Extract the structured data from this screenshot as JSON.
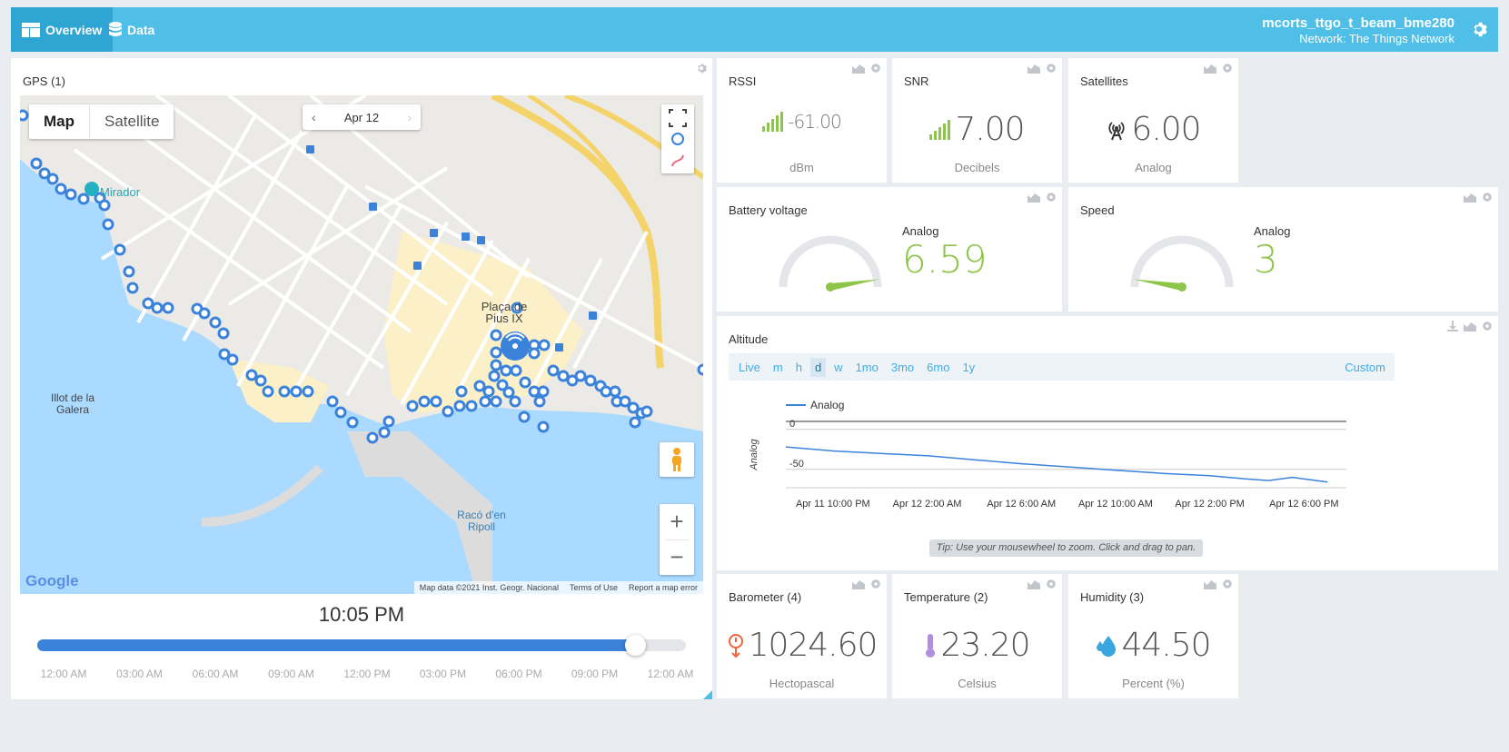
{
  "topbar": {
    "tabs": [
      {
        "label": "Overview",
        "icon": "overview-icon",
        "active": true
      },
      {
        "label": "Data",
        "icon": "database-icon",
        "active": false
      }
    ],
    "device_name": "mcorts_ttgo_t_beam_bme280",
    "network": "Network: The Things Network"
  },
  "gps": {
    "title": "GPS (1)",
    "map_types": [
      "Map",
      "Satellite"
    ],
    "date": "Apr 12",
    "prev": "‹",
    "next": "›",
    "zoom_in": "+",
    "zoom_out": "−",
    "google": "Google",
    "attribution": [
      "Map data ©2021 Inst. Geogr. Nacional",
      "Terms of Use",
      "Report a map error"
    ],
    "places": [
      "Mirador",
      "Plaça de Pius IX",
      "Illot de la Galera",
      "Racó d'en Ripoll"
    ],
    "time": "10:05 PM",
    "progress": 0.922,
    "ticks": [
      "12:00 AM",
      "03:00 AM",
      "06:00 AM",
      "09:00 AM",
      "12:00 PM",
      "03:00 PM",
      "06:00 PM",
      "09:00 PM",
      "12:00 AM"
    ]
  },
  "rssi": {
    "title": "RSSI",
    "value": "-61.00",
    "unit": "dBm"
  },
  "snr": {
    "title": "SNR",
    "value": "7.00",
    "unit": "Decibels"
  },
  "satellites": {
    "title": "Satellites",
    "value": "6.00",
    "unit": "Analog"
  },
  "battery": {
    "title": "Battery voltage",
    "label": "Analog",
    "value": "6.59",
    "gauge_fraction": 0.95
  },
  "speed": {
    "title": "Speed",
    "label": "Analog",
    "value": "3",
    "gauge_fraction": 0.05
  },
  "altitude": {
    "title": "Altitude",
    "ranges": [
      "Live",
      "m",
      "h",
      "d",
      "w",
      "1mo",
      "3mo",
      "6mo",
      "1y"
    ],
    "selected_range": "d",
    "custom": "Custom",
    "tip": "Tip: Use your mousewheel to zoom. Click and drag to pan."
  },
  "barometer": {
    "title": "Barometer (4)",
    "value": "1024.60",
    "unit": "Hectopascal"
  },
  "temperature": {
    "title": "Temperature (2)",
    "value": "23.20",
    "unit": "Celsius"
  },
  "humidity": {
    "title": "Humidity (3)",
    "value": "44.50",
    "unit": "Percent (%)"
  },
  "colors": {
    "topbar": "#4fbfe8",
    "accent_green": "#8dc549",
    "line_blue": "#3b82db",
    "link_blue": "#3eaee6"
  },
  "chart_data": {
    "type": "line",
    "title": "",
    "ylabel": "Analog",
    "legend": "top-left",
    "series": [
      {
        "name": "Analog",
        "x": [
          0,
          2,
          4,
          6,
          8,
          10,
          12,
          14,
          16,
          18,
          19.5,
          20.5,
          21.5,
          23
        ],
        "y": [
          -22,
          -27,
          -30,
          -33,
          -38,
          -43,
          -47,
          -51,
          -55,
          -58,
          -62,
          -64,
          -60,
          -66
        ]
      }
    ],
    "x_range": [
      0,
      23.8
    ],
    "x_ticks": [
      {
        "at": 2,
        "label": "Apr 11 10:00 PM"
      },
      {
        "at": 6,
        "label": "Apr 12 2:00 AM"
      },
      {
        "at": 10,
        "label": "Apr 12 6:00 AM"
      },
      {
        "at": 14,
        "label": "Apr 12 10:00 AM"
      },
      {
        "at": 18,
        "label": "Apr 12 2:00 PM"
      },
      {
        "at": 22,
        "label": "Apr 12 6:00 PM"
      }
    ],
    "y_ticks": [
      0,
      -50
    ],
    "ylim": [
      -73,
      10
    ],
    "grid": true
  }
}
